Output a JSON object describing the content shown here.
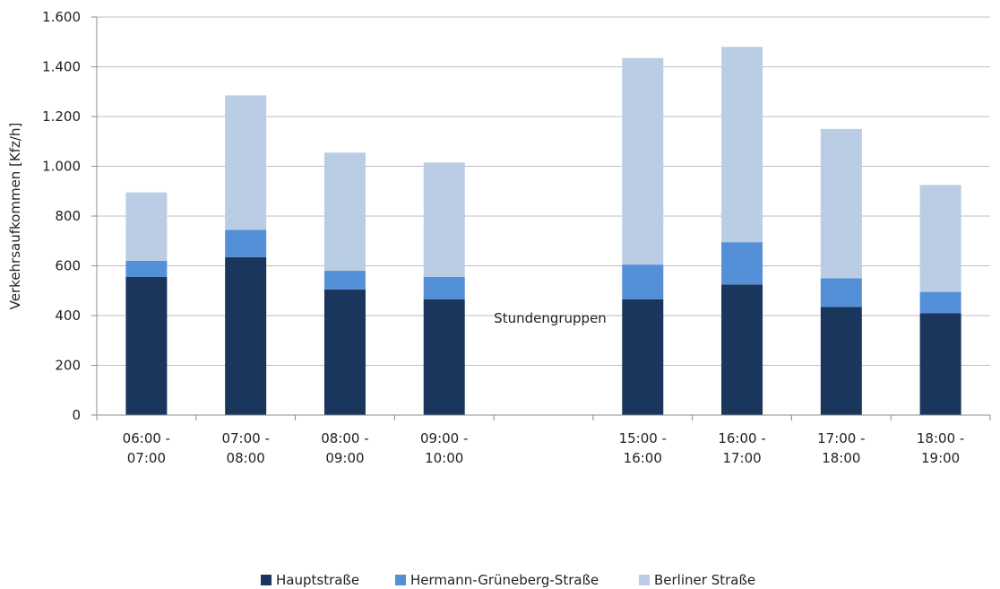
{
  "chart_data": {
    "type": "bar",
    "stacked": true,
    "categories": [
      [
        "06:00 -",
        "07:00"
      ],
      [
        "07:00 -",
        "08:00"
      ],
      [
        "08:00 -",
        "09:00"
      ],
      [
        "09:00 -",
        "10:00"
      ],
      [
        "",
        ""
      ],
      [
        "15:00 -",
        "16:00"
      ],
      [
        "16:00 -",
        "17:00"
      ],
      [
        "17:00 -",
        "18:00"
      ],
      [
        "18:00 -",
        "19:00"
      ]
    ],
    "series": [
      {
        "name": "Hauptstraße",
        "color": "#1b365d",
        "values": [
          555,
          635,
          505,
          465,
          null,
          465,
          525,
          435,
          410
        ]
      },
      {
        "name": "Hermann-Grüneberg-Straße",
        "color": "#5490d8",
        "values": [
          65,
          110,
          75,
          90,
          null,
          140,
          170,
          115,
          85
        ]
      },
      {
        "name": "Berliner Straße",
        "color": "#bacde4",
        "values": [
          275,
          540,
          475,
          460,
          null,
          830,
          785,
          600,
          430
        ]
      }
    ],
    "xlabel": "Stundengruppen",
    "ylabel": "Verkehrsaufkommen [Kfz/h]",
    "ylim": [
      0,
      1600
    ],
    "yticks": [
      0,
      200,
      400,
      600,
      800,
      1000,
      1200,
      1400,
      1600
    ],
    "ytick_labels": [
      "0",
      "200",
      "400",
      "600",
      "800",
      "1.000",
      "1.200",
      "1.400",
      "1.600"
    ],
    "grid": true,
    "grid_color": "#bfbfbf",
    "legend_position": "bottom"
  }
}
